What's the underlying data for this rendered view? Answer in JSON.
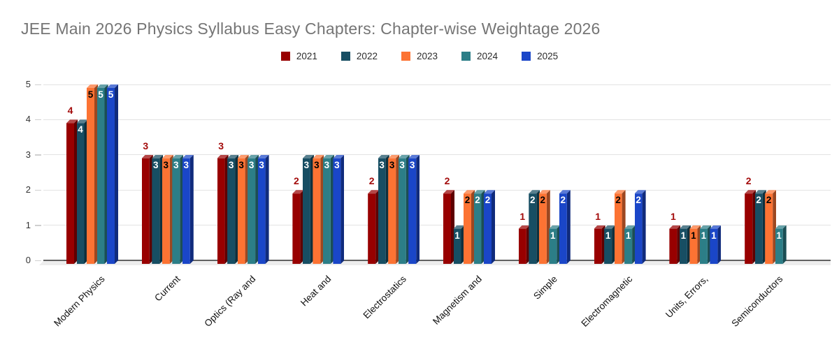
{
  "title": "JEE Main 2026 Physics Syllabus Easy Chapters: Chapter-wise Weightage 2026",
  "chart_data": {
    "type": "bar",
    "style": "3d-column",
    "title": "JEE Main 2026 Physics Syllabus Easy Chapters: Chapter-wise Weightage 2026",
    "title_color": "#757575",
    "categories": [
      "Modern Physics",
      "Current",
      "Optics (Ray and",
      "Heat and",
      "Electrostatics",
      "Magnetism and",
      "Simple",
      "Electromagnetic",
      "Units, Errors,",
      "Semiconductors"
    ],
    "series": [
      {
        "name": "2021",
        "color": "#980000",
        "label_color": "#a30b0b",
        "label_pos": "above",
        "values": [
          4,
          3,
          3,
          2,
          2,
          2,
          1,
          1,
          1,
          2
        ]
      },
      {
        "name": "2022",
        "color": "#174e63",
        "label_color": "#ffffff",
        "label_pos": "inside",
        "values": [
          4,
          3,
          3,
          3,
          3,
          1,
          2,
          1,
          1,
          2
        ]
      },
      {
        "name": "2023",
        "color": "#fc7333",
        "label_color": "#000000",
        "label_pos": "inside",
        "values": [
          5,
          3,
          3,
          3,
          3,
          2,
          2,
          2,
          1,
          2
        ]
      },
      {
        "name": "2024",
        "color": "#2c7e87",
        "label_color": "#ffffff",
        "label_pos": "inside",
        "values": [
          5,
          3,
          3,
          3,
          3,
          2,
          1,
          1,
          1,
          1
        ]
      },
      {
        "name": "2025",
        "color": "#1a46c8",
        "label_color": "#ffffff",
        "label_pos": "inside",
        "values": [
          5,
          3,
          3,
          3,
          3,
          2,
          2,
          2,
          1,
          0
        ]
      }
    ],
    "ylim": [
      0,
      5
    ],
    "yticks": [
      0,
      1,
      2,
      3,
      4,
      5
    ],
    "grid": true,
    "legend_position": "top",
    "data_labels": true
  }
}
